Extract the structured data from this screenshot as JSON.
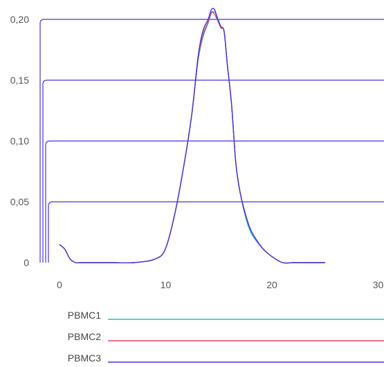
{
  "chart_data": {
    "type": "line",
    "title": "",
    "xlabel": "",
    "ylabel": "",
    "xlim": [
      -1,
      30
    ],
    "ylim": [
      0,
      0.2
    ],
    "x_ticks": [
      0,
      10,
      20,
      30
    ],
    "x_tick_labels": [
      "0",
      "10",
      "20",
      "30"
    ],
    "y_ticks": [
      0,
      0.05,
      0.1,
      0.15,
      0.2
    ],
    "y_tick_labels": [
      "0",
      "0,05",
      "0,10",
      "0,15",
      "0,20"
    ],
    "grid": false,
    "legend_position": "bottom",
    "series": [
      {
        "name": "PBMC1",
        "color": "#1fbfc8",
        "x": [
          0,
          0.5,
          1,
          1.5,
          2,
          3,
          5,
          7,
          9,
          10,
          11,
          12,
          12.5,
          13,
          13.3,
          13.6,
          14,
          14.3,
          14.6,
          14.9,
          15.2,
          15.5,
          15.8,
          16.2,
          16.6,
          17,
          17.5,
          18,
          18.6,
          19.2,
          20,
          21,
          22,
          23,
          24,
          25
        ],
        "y": [
          0.015,
          0.011,
          0.003,
          0.0,
          0.0,
          0.0,
          0.0,
          0.0,
          0.003,
          0.012,
          0.046,
          0.095,
          0.125,
          0.163,
          0.178,
          0.188,
          0.197,
          0.205,
          0.206,
          0.201,
          0.194,
          0.19,
          0.163,
          0.13,
          0.082,
          0.058,
          0.038,
          0.025,
          0.017,
          0.011,
          0.005,
          0.0,
          0.0,
          0.0,
          0.0,
          0.0
        ]
      },
      {
        "name": "PBMC2",
        "color": "#e8435e",
        "x": [
          0,
          0.5,
          1,
          1.5,
          2,
          3,
          5,
          7,
          9,
          10,
          11,
          12,
          12.5,
          13,
          13.3,
          13.6,
          14,
          14.3,
          14.6,
          14.9,
          15.2,
          15.5,
          15.8,
          16.2,
          16.6,
          17,
          17.5,
          18,
          18.6,
          19.2,
          20,
          21,
          22,
          23,
          24,
          25
        ],
        "y": [
          0.015,
          0.011,
          0.003,
          0.0,
          0.0,
          0.0,
          0.0,
          0.0,
          0.003,
          0.012,
          0.046,
          0.095,
          0.125,
          0.165,
          0.18,
          0.19,
          0.198,
          0.206,
          0.204,
          0.199,
          0.193,
          0.19,
          0.163,
          0.13,
          0.082,
          0.058,
          0.04,
          0.027,
          0.018,
          0.011,
          0.005,
          0.0,
          0.0,
          0.0,
          0.0,
          0.0
        ]
      },
      {
        "name": "PBMC3",
        "color": "#4a32d4",
        "x": [
          0,
          0.5,
          1,
          1.5,
          2,
          3,
          5,
          7,
          9,
          10,
          11,
          12,
          12.5,
          13,
          13.3,
          13.6,
          14,
          14.3,
          14.6,
          14.9,
          15.2,
          15.5,
          15.8,
          16.2,
          16.6,
          17,
          17.5,
          18,
          18.6,
          19.2,
          20,
          21,
          22,
          23,
          24,
          25
        ],
        "y": [
          0.015,
          0.011,
          0.003,
          0.0,
          0.0,
          0.0,
          0.0,
          0.0,
          0.003,
          0.012,
          0.046,
          0.095,
          0.125,
          0.166,
          0.183,
          0.193,
          0.2,
          0.208,
          0.208,
          0.2,
          0.194,
          0.19,
          0.163,
          0.13,
          0.082,
          0.058,
          0.04,
          0.027,
          0.018,
          0.011,
          0.005,
          0.0,
          0.0,
          0.0,
          0.0,
          0.0
        ]
      }
    ],
    "reference_levels": [
      0.2,
      0.15,
      0.1,
      0.05
    ],
    "reference_color": "#4a32d4"
  }
}
